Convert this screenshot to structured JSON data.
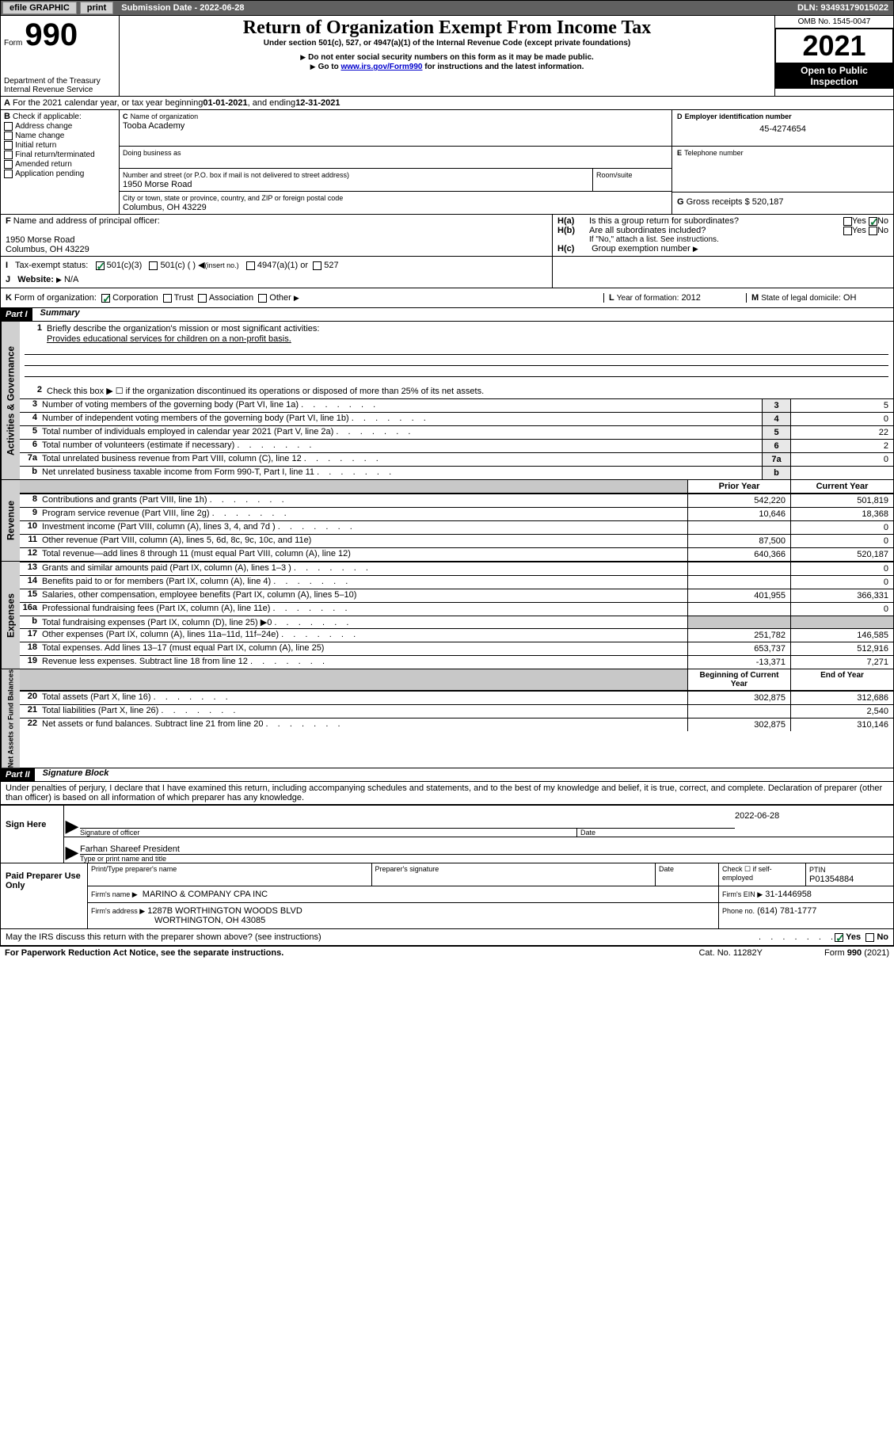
{
  "topbar": {
    "efile": "efile GRAPHIC",
    "print": "print",
    "submission_label": "Submission Date - 2022-06-28",
    "dln": "DLN: 93493179015022"
  },
  "header": {
    "form_label": "Form",
    "form_number": "990",
    "title": "Return of Organization Exempt From Income Tax",
    "subtitle": "Under section 501(c), 527, or 4947(a)(1) of the Internal Revenue Code (except private foundations)",
    "warn1": "Do not enter social security numbers on this form as it may be made public.",
    "warn2_pre": "Go to ",
    "warn2_link": "www.irs.gov/Form990",
    "warn2_post": " for instructions and the latest information.",
    "dept": "Department of the Treasury",
    "irs": "Internal Revenue Service",
    "omb": "OMB No. 1545-0047",
    "year": "2021",
    "open": "Open to Public Inspection"
  },
  "secA": {
    "text_pre": "For the 2021 calendar year, or tax year beginning ",
    "begin": "01-01-2021",
    "mid": " , and ending ",
    "end": "12-31-2021"
  },
  "secB": {
    "label": "Check if applicable:",
    "opts": [
      "Address change",
      "Name change",
      "Initial return",
      "Final return/terminated",
      "Amended return",
      "Application pending"
    ]
  },
  "secC": {
    "name_label": "Name of organization",
    "name": "Tooba Academy",
    "dba_label": "Doing business as",
    "addr_label": "Number and street (or P.O. box if mail is not delivered to street address)",
    "room_label": "Room/suite",
    "addr": "1950 Morse Road",
    "city_label": "City or town, state or province, country, and ZIP or foreign postal code",
    "city": "Columbus, OH  43229"
  },
  "secD": {
    "label": "Employer identification number",
    "val": "45-4274654"
  },
  "secE": {
    "label": "Telephone number",
    "val": ""
  },
  "secG": {
    "label": "Gross receipts $",
    "val": "520,187"
  },
  "secF": {
    "label": "Name and address of principal officer:",
    "line1": "1950 Morse Road",
    "line2": "Columbus, OH  43229"
  },
  "secH": {
    "a": "Is this a group return for subordinates?",
    "b": "Are all subordinates included?",
    "b_note": "If \"No,\" attach a list. See instructions.",
    "c": "Group exemption number",
    "yes": "Yes",
    "no": "No"
  },
  "secI": {
    "label": "Tax-exempt status:",
    "o1": "501(c)(3)",
    "o2": "501(c) (  )",
    "o2b": "(insert no.)",
    "o3": "4947(a)(1) or",
    "o4": "527"
  },
  "secJ": {
    "label": "Website:",
    "val": "N/A"
  },
  "secK": {
    "label": "Form of organization:",
    "opts": [
      "Corporation",
      "Trust",
      "Association",
      "Other"
    ]
  },
  "secL": {
    "label": "Year of formation:",
    "val": "2012"
  },
  "secM": {
    "label": "State of legal domicile:",
    "val": "OH"
  },
  "part1": {
    "header": "Part I",
    "title": "Summary",
    "l1": "Briefly describe the organization's mission or most significant activities:",
    "l1v": "Provides educational services for children on a non-profit basis.",
    "l2": "Check this box ▶ ☐  if the organization discontinued its operations or disposed of more than 25% of its net assets.",
    "rows_ag": [
      {
        "n": "3",
        "d": "Number of voting members of the governing body (Part VI, line 1a)",
        "v": "5"
      },
      {
        "n": "4",
        "d": "Number of independent voting members of the governing body (Part VI, line 1b)",
        "v": "0"
      },
      {
        "n": "5",
        "d": "Total number of individuals employed in calendar year 2021 (Part V, line 2a)",
        "v": "22"
      },
      {
        "n": "6",
        "d": "Total number of volunteers (estimate if necessary)",
        "v": "2"
      },
      {
        "n": "7a",
        "d": "Total unrelated business revenue from Part VIII, column (C), line 12",
        "v": "0"
      },
      {
        "n": "b",
        "d": "Net unrelated business taxable income from Form 990-T, Part I, line 11",
        "v": ""
      }
    ],
    "col_prior": "Prior Year",
    "col_curr": "Current Year",
    "rows_rev": [
      {
        "n": "8",
        "d": "Contributions and grants (Part VIII, line 1h)",
        "p": "542,220",
        "c": "501,819"
      },
      {
        "n": "9",
        "d": "Program service revenue (Part VIII, line 2g)",
        "p": "10,646",
        "c": "18,368"
      },
      {
        "n": "10",
        "d": "Investment income (Part VIII, column (A), lines 3, 4, and 7d )",
        "p": "",
        "c": "0"
      },
      {
        "n": "11",
        "d": "Other revenue (Part VIII, column (A), lines 5, 6d, 8c, 9c, 10c, and 11e)",
        "p": "87,500",
        "c": "0"
      },
      {
        "n": "12",
        "d": "Total revenue—add lines 8 through 11 (must equal Part VIII, column (A), line 12)",
        "p": "640,366",
        "c": "520,187"
      }
    ],
    "rows_exp": [
      {
        "n": "13",
        "d": "Grants and similar amounts paid (Part IX, column (A), lines 1–3 )",
        "p": "",
        "c": "0"
      },
      {
        "n": "14",
        "d": "Benefits paid to or for members (Part IX, column (A), line 4)",
        "p": "",
        "c": "0"
      },
      {
        "n": "15",
        "d": "Salaries, other compensation, employee benefits (Part IX, column (A), lines 5–10)",
        "p": "401,955",
        "c": "366,331"
      },
      {
        "n": "16a",
        "d": "Professional fundraising fees (Part IX, column (A), line 11e)",
        "p": "",
        "c": "0"
      },
      {
        "n": "b",
        "d": "Total fundraising expenses (Part IX, column (D), line 25) ▶0",
        "p": "GREY",
        "c": "GREY"
      },
      {
        "n": "17",
        "d": "Other expenses (Part IX, column (A), lines 11a–11d, 11f–24e)",
        "p": "251,782",
        "c": "146,585"
      },
      {
        "n": "18",
        "d": "Total expenses. Add lines 13–17 (must equal Part IX, column (A), line 25)",
        "p": "653,737",
        "c": "512,916"
      },
      {
        "n": "19",
        "d": "Revenue less expenses. Subtract line 18 from line 12",
        "p": "-13,371",
        "c": "7,271"
      }
    ],
    "col_beg": "Beginning of Current Year",
    "col_end": "End of Year",
    "rows_na": [
      {
        "n": "20",
        "d": "Total assets (Part X, line 16)",
        "p": "302,875",
        "c": "312,686"
      },
      {
        "n": "21",
        "d": "Total liabilities (Part X, line 26)",
        "p": "",
        "c": "2,540"
      },
      {
        "n": "22",
        "d": "Net assets or fund balances. Subtract line 21 from line 20",
        "p": "302,875",
        "c": "310,146"
      }
    ]
  },
  "part2": {
    "header": "Part II",
    "title": "Signature Block",
    "decl": "Under penalties of perjury, I declare that I have examined this return, including accompanying schedules and statements, and to the best of my knowledge and belief, it is true, correct, and complete. Declaration of preparer (other than officer) is based on all information of which preparer has any knowledge."
  },
  "sign": {
    "label": "Sign Here",
    "sig_label": "Signature of officer",
    "date_label": "Date",
    "date": "2022-06-28",
    "name": "Farhan Shareef President",
    "name_label": "Type or print name and title"
  },
  "preparer": {
    "label": "Paid Preparer Use Only",
    "col1": "Print/Type preparer's name",
    "col2": "Preparer's signature",
    "col3": "Date",
    "check_label": "Check ☐ if self-employed",
    "ptin_label": "PTIN",
    "ptin": "P01354884",
    "firm_name_label": "Firm's name  ▶",
    "firm_name": "MARINO & COMPANY CPA INC",
    "firm_ein_label": "Firm's EIN ▶",
    "firm_ein": "31-1446958",
    "firm_addr_label": "Firm's address ▶",
    "firm_addr1": "1287B WORTHINGTON WOODS BLVD",
    "firm_addr2": "WORTHINGTON, OH  43085",
    "phone_label": "Phone no.",
    "phone": "(614) 781-1777"
  },
  "footer": {
    "q": "May the IRS discuss this return with the preparer shown above? (see instructions)",
    "yes": "Yes",
    "no": "No",
    "pra": "For Paperwork Reduction Act Notice, see the separate instructions.",
    "cat": "Cat. No. 11282Y",
    "form": "Form 990 (2021)"
  },
  "labels": {
    "A": "A",
    "B": "B",
    "C": "C",
    "D": "D",
    "E": "E",
    "F": "F",
    "G": "G",
    "H_a": "H(a)",
    "H_b": "H(b)",
    "H_c": "H(c)",
    "I": "I",
    "J": "J",
    "K": "K",
    "L": "L",
    "M": "M"
  },
  "tabs": {
    "ag": "Activities & Governance",
    "rev": "Revenue",
    "exp": "Expenses",
    "na": "Net Assets or Fund Balances"
  }
}
